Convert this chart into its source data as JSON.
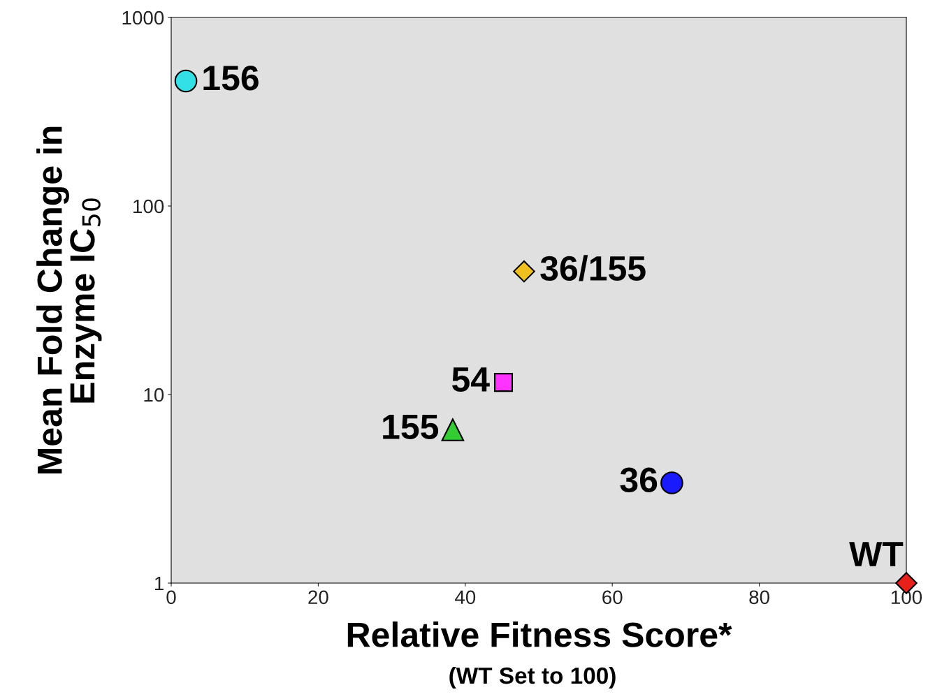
{
  "chart_data": {
    "type": "scatter",
    "xlabel": "Relative Fitness Score*",
    "ylabel": "Mean Fold Change in\nEnzyme IC$_{50}$",
    "annotations": [
      "(WT Set to 100)"
    ],
    "series": [
      {
        "name": "156",
        "x": [
          2.0
        ],
        "values": [
          460
        ],
        "color": "#33e0e8",
        "marker": "circle"
      },
      {
        "name": "36/155",
        "x": [
          48.0
        ],
        "values": [
          45
        ],
        "color": "#f0c020",
        "marker": "diamond"
      },
      {
        "name": "54",
        "x": [
          45.2
        ],
        "values": [
          11.6
        ],
        "color": "#ff33ff",
        "marker": "square"
      },
      {
        "name": "155",
        "x": [
          38.3
        ],
        "values": [
          6.5
        ],
        "color": "#33cc33",
        "marker": "triangle"
      },
      {
        "name": "36",
        "x": [
          68.1
        ],
        "values": [
          3.4
        ],
        "color": "#1a1aff",
        "marker": "circle"
      },
      {
        "name": "WT",
        "x": [
          100
        ],
        "values": [
          1
        ],
        "color": "#e8201a",
        "marker": "diamond"
      }
    ],
    "log": "y",
    "xlim": [
      0,
      100
    ],
    "xticks": [
      0,
      20,
      40,
      60,
      80,
      100
    ],
    "ylim": [
      1,
      1000
    ],
    "yticks": [
      1,
      10,
      100,
      1000
    ],
    "grid": false,
    "legend": false
  }
}
